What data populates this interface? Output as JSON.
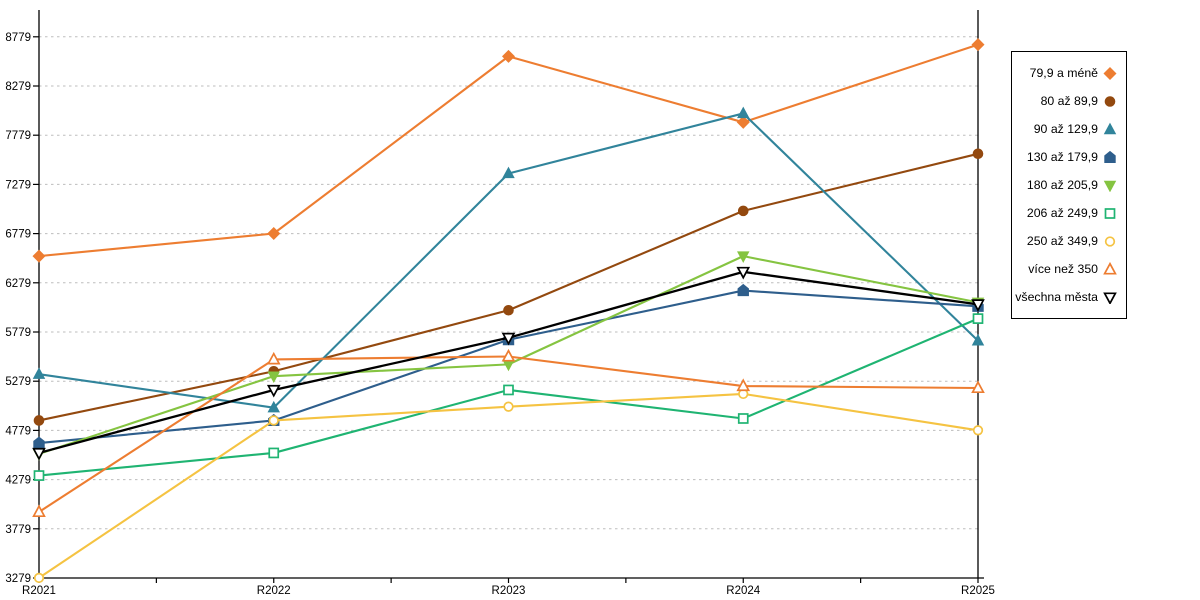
{
  "chart_data": {
    "type": "line",
    "title": "",
    "xlabel": "",
    "ylabel": "",
    "categories": [
      "R2021",
      "R2022",
      "R2023",
      "R2024",
      "R2025"
    ],
    "ylim": [
      3279,
      8779
    ],
    "ytick_step": 500,
    "ytick_labels": [
      "8779",
      "8279",
      "7779",
      "7279",
      "6779",
      "6279",
      "5779",
      "5279",
      "4779",
      "4279",
      "3779",
      "3279"
    ],
    "grid": "horizontal-dashed",
    "legend_position": "right-outside",
    "gridline_color": "#BDBDBD",
    "axis_color": "#000000",
    "series": [
      {
        "name": "79,9 a méně",
        "color": "#ED7D31",
        "marker": "diamond",
        "marker_fill": "filled",
        "values": [
          6550,
          6780,
          8580,
          7910,
          8700
        ]
      },
      {
        "name": "80 až 89,9",
        "color": "#93490F",
        "marker": "circle",
        "marker_fill": "filled",
        "values": [
          4880,
          5380,
          6000,
          7010,
          7590
        ]
      },
      {
        "name": "90 až 129,9",
        "color": "#31849B",
        "marker": "triangle-up",
        "marker_fill": "filled",
        "values": [
          5350,
          5010,
          7390,
          8000,
          5690
        ]
      },
      {
        "name": "130 až 179,9",
        "color": "#2E5E8C",
        "marker": "pentagon",
        "marker_fill": "filled",
        "values": [
          4650,
          4880,
          5700,
          6200,
          6040
        ]
      },
      {
        "name": "180 až 205,9",
        "color": "#85C441",
        "marker": "triangle-down",
        "marker_fill": "filled",
        "values": [
          4540,
          5330,
          5450,
          6550,
          6080
        ]
      },
      {
        "name": "206 až 249,9",
        "color": "#1FB472",
        "marker": "square",
        "marker_fill": "hollow",
        "values": [
          4320,
          4550,
          5190,
          4900,
          5915
        ]
      },
      {
        "name": "250 až 349,9",
        "color": "#F5C342",
        "marker": "circle",
        "marker_fill": "hollow",
        "values": [
          3280,
          4880,
          5020,
          5150,
          4780
        ]
      },
      {
        "name": "více než 350",
        "color": "#ED7D31",
        "marker": "triangle-up",
        "marker_fill": "hollow",
        "values": [
          3950,
          5500,
          5530,
          5230,
          5210
        ]
      },
      {
        "name": "všechna města",
        "color": "#000000",
        "marker": "triangle-down",
        "marker_fill": "hollow",
        "values": [
          4550,
          5190,
          5720,
          6390,
          6060
        ]
      }
    ]
  }
}
